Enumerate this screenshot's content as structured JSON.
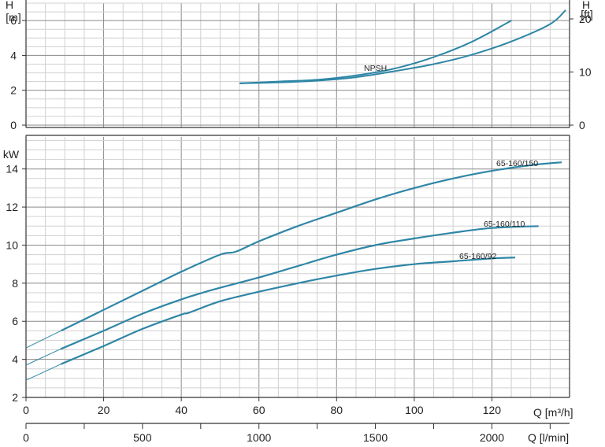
{
  "chart_data": [
    {
      "type": "line",
      "name": "npsh-panel",
      "ylabel_left": "H\n[m]",
      "ylabel_right": "H\n[ft]",
      "ylim_m": [
        0,
        7
      ],
      "ylim_ft": [
        0,
        23
      ],
      "yticks_m": [
        "0",
        "2",
        "4",
        "6"
      ],
      "yticks_ft": [
        "0",
        "10",
        "20"
      ],
      "xlim": [
        0,
        140
      ],
      "grid": true,
      "series": [
        {
          "name": "NPSH",
          "x": [
            55,
            65,
            75,
            85,
            95,
            105,
            115,
            125
          ],
          "y": [
            2.4,
            2.5,
            2.6,
            2.85,
            3.25,
            3.9,
            4.8,
            6.0
          ]
        },
        {
          "x": [
            55,
            65,
            75,
            85,
            95,
            105,
            115,
            125,
            135,
            139
          ],
          "y": [
            2.4,
            2.45,
            2.55,
            2.75,
            3.1,
            3.5,
            4.05,
            4.8,
            5.8,
            6.6
          ]
        }
      ]
    },
    {
      "type": "line",
      "name": "power-panel",
      "ylabel": "kW",
      "ylim": [
        2,
        15.6
      ],
      "yticks": [
        "2",
        "4",
        "6",
        "8",
        "10",
        "12",
        "14"
      ],
      "xlim": [
        0,
        140
      ],
      "xlabel": "Q [m³/h]",
      "xticks": [
        "0",
        "20",
        "40",
        "60",
        "80",
        "100",
        "120"
      ],
      "xlabel2": "Q [l/min]",
      "xticks2": [
        "0",
        "500",
        "1000",
        "1500",
        "2000"
      ],
      "grid": true,
      "series": [
        {
          "name": "65-160/150",
          "x": [
            0,
            9,
            20,
            30,
            40,
            50,
            54,
            60,
            70,
            80,
            90,
            100,
            110,
            120,
            130,
            138
          ],
          "y": [
            4.6,
            5.5,
            6.6,
            7.6,
            8.6,
            9.5,
            9.65,
            10.2,
            11.0,
            11.7,
            12.4,
            13.0,
            13.5,
            13.9,
            14.2,
            14.35
          ]
        },
        {
          "name": "65-160/110",
          "x": [
            0,
            9,
            20,
            30,
            40,
            48,
            60,
            70,
            80,
            90,
            100,
            110,
            120,
            132
          ],
          "y": [
            3.7,
            4.55,
            5.5,
            6.4,
            7.15,
            7.65,
            8.3,
            8.9,
            9.5,
            10.0,
            10.35,
            10.65,
            10.9,
            11.0
          ]
        },
        {
          "name": "65-160/92",
          "x": [
            0,
            9,
            20,
            30,
            40,
            42,
            50,
            60,
            70,
            80,
            90,
            100,
            110,
            120,
            126
          ],
          "y": [
            2.9,
            3.75,
            4.7,
            5.6,
            6.35,
            6.45,
            7.05,
            7.55,
            8.0,
            8.4,
            8.75,
            9.0,
            9.15,
            9.3,
            9.35
          ]
        }
      ]
    }
  ]
}
